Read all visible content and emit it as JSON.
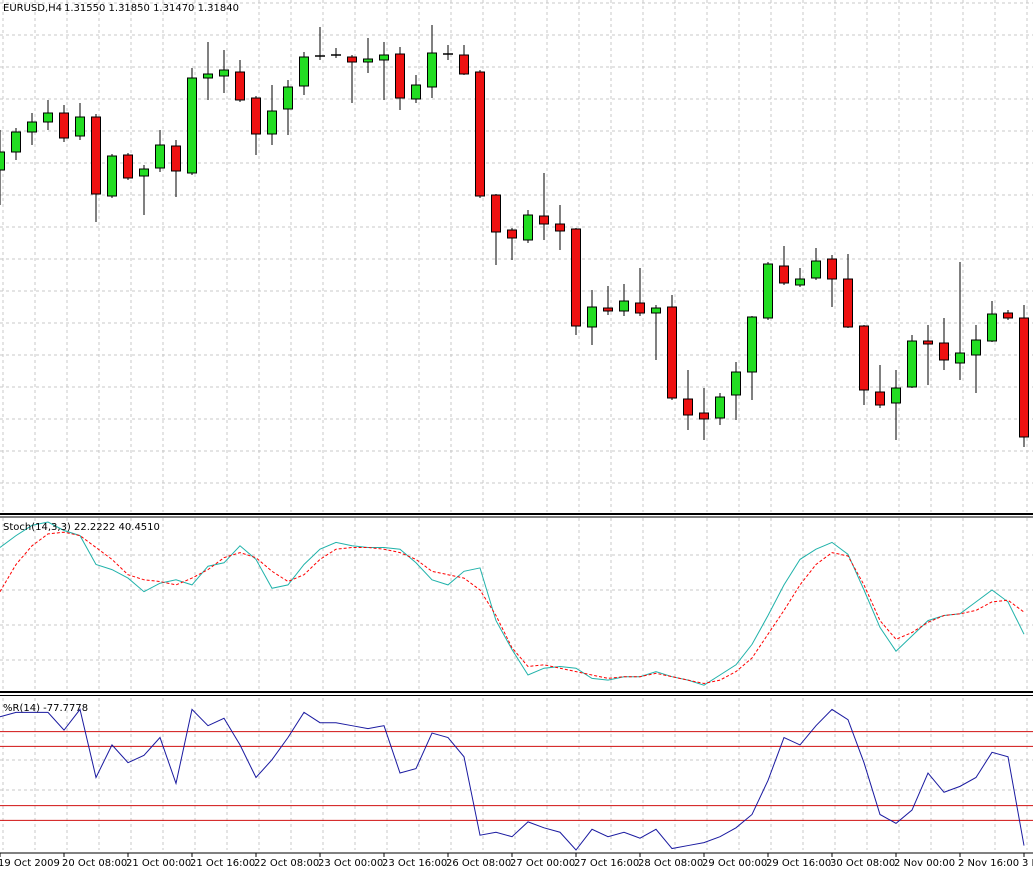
{
  "chart_data": [
    {
      "type": "candlestick",
      "title": "EURUSD,H4",
      "subtitle": "1.31550 1.31850 1.31470 1.31840",
      "categories": [
        "19 Oct 2009",
        null,
        null,
        null,
        "20 Oct 08:00",
        null,
        null,
        null,
        "21 Oct 00:00",
        null,
        null,
        null,
        "21 Oct 16:00",
        null,
        null,
        null,
        "22 Oct 08:00",
        null,
        null,
        null,
        "23 Oct 00:00",
        null,
        null,
        null,
        "23 Oct 16:00",
        null,
        null,
        null,
        "26 Oct 08:00",
        null,
        null,
        null,
        "27 Oct 00:00",
        null,
        null,
        null,
        "27 Oct 16:00",
        null,
        null,
        null,
        "28 Oct 08:00",
        null,
        null,
        null,
        "29 Oct 00:00",
        null,
        null,
        null,
        "29 Oct 16:00",
        null,
        null,
        null,
        "30 Oct 08:00",
        null,
        null,
        null,
        "2 Nov 00:00",
        null,
        null,
        null,
        "2 Nov 16:00",
        null,
        null,
        null,
        "3 N"
      ],
      "open": [
        1.491,
        1.4928,
        1.4948,
        1.4958,
        1.4967,
        1.4944,
        1.4963,
        1.4884,
        1.4925,
        1.4904,
        1.4912,
        1.4934,
        1.4907,
        1.5002,
        1.5004,
        1.5008,
        1.4982,
        1.4946,
        1.4971,
        1.4994,
        1.5024,
        1.5025,
        1.5023,
        1.5018,
        1.502,
        1.5026,
        1.4981,
        1.4993,
        1.5026,
        1.5025,
        1.5008,
        1.4885,
        1.485,
        1.484,
        1.4864,
        1.4856,
        1.4851,
        1.4753,
        1.4772,
        1.4769,
        1.4777,
        1.4767,
        1.4773,
        1.4681,
        1.4667,
        1.4662,
        1.4685,
        1.4708,
        1.4762,
        1.4814,
        1.4795,
        1.4802,
        1.4821,
        1.4801,
        1.4754,
        1.4688,
        1.4677,
        1.4693,
        1.4739,
        1.4737,
        1.4717,
        1.4725,
        1.4739,
        1.4767,
        1.4762
      ],
      "high": [
        1.495,
        1.4952,
        1.4967,
        1.498,
        1.4975,
        1.4977,
        1.4966,
        1.4926,
        1.4927,
        1.4915,
        1.495,
        1.494,
        1.5012,
        1.5038,
        1.503,
        1.502,
        1.4984,
        1.4995,
        1.5,
        1.5028,
        1.5053,
        1.5032,
        1.5025,
        1.5042,
        1.5038,
        1.5033,
        1.5005,
        1.5055,
        1.5035,
        1.5035,
        1.501,
        1.4886,
        1.4852,
        1.487,
        1.4907,
        1.4875,
        1.4852,
        1.479,
        1.4794,
        1.4796,
        1.4812,
        1.4775,
        1.4785,
        1.471,
        1.4692,
        1.4687,
        1.4718,
        1.4764,
        1.4818,
        1.4834,
        1.4812,
        1.4832,
        1.4825,
        1.4826,
        1.4755,
        1.4715,
        1.471,
        1.4745,
        1.4755,
        1.4762,
        1.4818,
        1.4755,
        1.4779,
        1.477,
        1.4775
      ],
      "low": [
        1.4875,
        1.492,
        1.4935,
        1.495,
        1.4938,
        1.494,
        1.4858,
        1.4882,
        1.49,
        1.4865,
        1.4908,
        1.4883,
        1.4905,
        1.498,
        1.4987,
        1.4978,
        1.4925,
        1.4935,
        1.4945,
        1.4985,
        1.502,
        1.5022,
        1.4977,
        1.5007,
        1.498,
        1.497,
        1.4977,
        1.4982,
        1.502,
        1.5005,
        1.4882,
        1.4815,
        1.482,
        1.4837,
        1.484,
        1.483,
        1.4745,
        1.4735,
        1.4765,
        1.4764,
        1.4764,
        1.472,
        1.468,
        1.465,
        1.464,
        1.4655,
        1.466,
        1.468,
        1.476,
        1.4795,
        1.4793,
        1.48,
        1.4773,
        1.4752,
        1.4675,
        1.4672,
        1.464,
        1.4692,
        1.4695,
        1.471,
        1.47,
        1.4687,
        1.4738,
        1.476,
        1.4633
      ],
      "close": [
        1.4928,
        1.4948,
        1.4958,
        1.4967,
        1.4942,
        1.4963,
        1.4886,
        1.4924,
        1.4902,
        1.4911,
        1.4935,
        1.4909,
        1.5002,
        1.5006,
        1.501,
        1.498,
        1.4946,
        1.4969,
        1.4993,
        1.5023,
        1.5024,
        1.5025,
        1.5018,
        1.5021,
        1.5025,
        1.4982,
        1.4995,
        1.5027,
        1.5026,
        1.5006,
        1.4884,
        1.4848,
        1.4842,
        1.4865,
        1.4856,
        1.4849,
        1.4754,
        1.4773,
        1.4769,
        1.4779,
        1.4767,
        1.4772,
        1.4682,
        1.4665,
        1.4661,
        1.4683,
        1.4708,
        1.4763,
        1.4816,
        1.4797,
        1.4801,
        1.4819,
        1.4801,
        1.4753,
        1.469,
        1.4675,
        1.4692,
        1.4739,
        1.4736,
        1.472,
        1.4727,
        1.474,
        1.4766,
        1.4762,
        1.4643
      ],
      "up_color": "#22dd22",
      "down_color": "#ee1111",
      "ylim": [
        1.4568,
        1.508
      ],
      "grid": true
    },
    {
      "type": "line",
      "title": "Stoch(14,3,3) 22.2222 40.4510",
      "ylim": [
        0,
        100
      ],
      "grid": true,
      "series": [
        {
          "color": "#20b2aa",
          "style": "solid",
          "values": [
            85,
            92,
            98,
            100,
            95,
            92,
            75,
            72,
            67,
            59,
            64,
            66,
            63,
            74,
            76,
            86,
            78,
            61,
            63,
            75,
            84,
            88,
            86,
            85,
            85,
            84,
            76,
            66,
            63,
            71,
            73,
            42,
            25,
            10,
            14,
            15,
            14,
            8,
            7,
            9,
            9,
            12,
            9,
            7,
            4,
            10,
            16,
            28,
            45,
            63,
            78,
            84,
            88,
            81,
            60,
            38,
            24,
            33,
            42,
            45,
            46,
            53,
            60,
            53,
            34
          ]
        },
        {
          "color": "#ff0000",
          "style": "dashed",
          "values": [
            59,
            75,
            86,
            93,
            94,
            92,
            85,
            78,
            69,
            66,
            65,
            63,
            67,
            72,
            79,
            82,
            79,
            71,
            65,
            69,
            78,
            84,
            85,
            85,
            84,
            82,
            78,
            71,
            69,
            67,
            60,
            45,
            26,
            15,
            16,
            14,
            12,
            10,
            8,
            9,
            9,
            11,
            9,
            7,
            5,
            7,
            12,
            20,
            34,
            48,
            63,
            75,
            82,
            80,
            63,
            42,
            31,
            35,
            41,
            45,
            46,
            48,
            53,
            54,
            47
          ]
        }
      ]
    },
    {
      "type": "line",
      "title": "%R(14) -77.7778",
      "ylim": [
        -100,
        0
      ],
      "levels": [
        -20,
        -30,
        -70,
        -80
      ],
      "level_color": "#d01010",
      "grid": true,
      "series": [
        {
          "color": "#1a1aa0",
          "style": "solid",
          "values": [
            -10,
            -7,
            -7,
            -7,
            -19,
            -5,
            -51,
            -29,
            -41,
            -36,
            -24,
            -55,
            -5,
            -16,
            -11,
            -29,
            -51,
            -39,
            -24,
            -7,
            -14,
            -14,
            -16,
            -18,
            -16,
            -48,
            -45,
            -21,
            -24,
            -37,
            -90,
            -88,
            -91,
            -81,
            -85,
            -88,
            -100,
            -86,
            -91,
            -88,
            -92,
            -86,
            -99,
            -97,
            -95,
            -91,
            -85,
            -76,
            -53,
            -24,
            -29,
            -16,
            -5,
            -12,
            -41,
            -76,
            -82,
            -73,
            -48,
            -61,
            -57,
            -51,
            -34,
            -37,
            -97
          ]
        }
      ]
    }
  ]
}
